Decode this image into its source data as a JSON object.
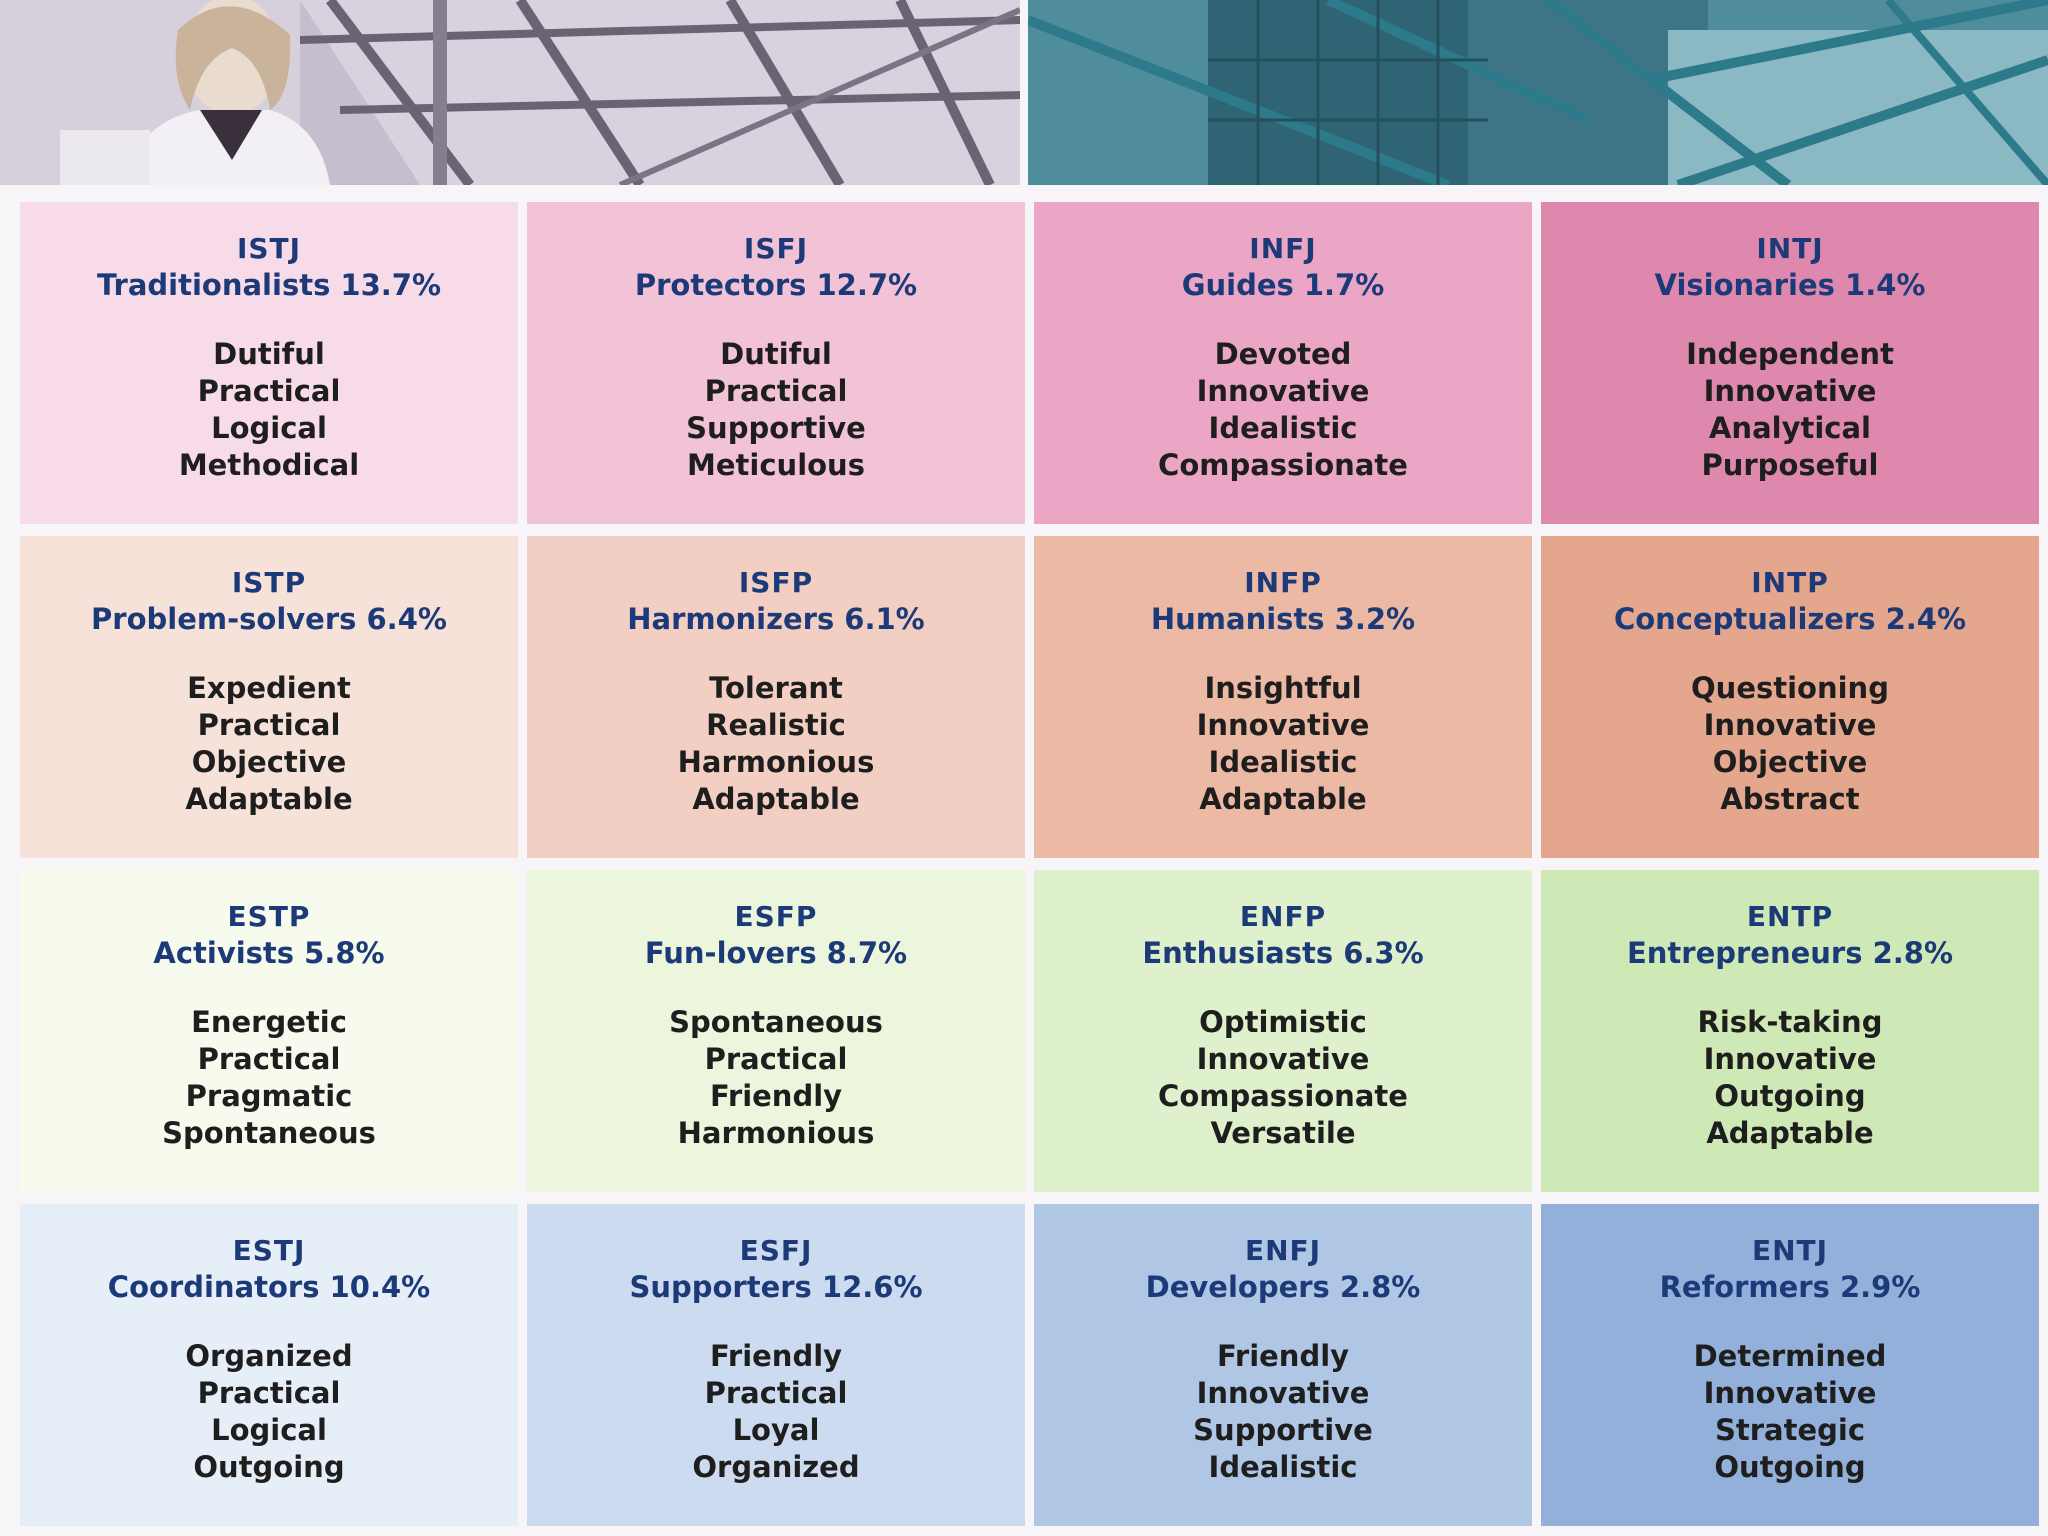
{
  "types": [
    {
      "code": "ISTJ",
      "name": "Traditionalists 13.7%",
      "traits": [
        "Dutiful",
        "Practical",
        "Logical",
        "Methodical"
      ],
      "color": "#f7dbe9"
    },
    {
      "code": "ISFJ",
      "name": "Protectors 12.7%",
      "traits": [
        "Dutiful",
        "Practical",
        "Supportive",
        "Meticulous"
      ],
      "color": "#f2c2d6"
    },
    {
      "code": "INFJ",
      "name": "Guides 1.7%",
      "traits": [
        "Devoted",
        "Innovative",
        "Idealistic",
        "Compassionate"
      ],
      "color": "#eaa6c4"
    },
    {
      "code": "INTJ",
      "name": "Visionaries 1.4%",
      "traits": [
        "Independent",
        "Innovative",
        "Analytical",
        "Purposeful"
      ],
      "color": "#df88ad"
    },
    {
      "code": "ISTP",
      "name": "Problem-solvers 6.4%",
      "traits": [
        "Expedient",
        "Practical",
        "Objective",
        "Adaptable"
      ],
      "color": "#f7e2da"
    },
    {
      "code": "ISFP",
      "name": "Harmonizers 6.1%",
      "traits": [
        "Tolerant",
        "Realistic",
        "Harmonious",
        "Adaptable"
      ],
      "color": "#f2cfc2"
    },
    {
      "code": "INFP",
      "name": "Humanists 3.2%",
      "traits": [
        "Insightful",
        "Innovative",
        "Idealistic",
        "Adaptable"
      ],
      "color": "#ebb9a4"
    },
    {
      "code": "INTP",
      "name": "Conceptualizers 2.4%",
      "traits": [
        "Questioning",
        "Innovative",
        "Objective",
        "Abstract"
      ],
      "color": "#e4a68d"
    },
    {
      "code": "ESTP",
      "name": "Activists 5.8%",
      "traits": [
        "Energetic",
        "Practical",
        "Pragmatic",
        "Spontaneous"
      ],
      "color": "#f6fbee"
    },
    {
      "code": "ESFP",
      "name": "Fun-lovers 8.7%",
      "traits": [
        "Spontaneous",
        "Practical",
        "Friendly",
        "Harmonious"
      ],
      "color": "#ebf6dc"
    },
    {
      "code": "ENFP",
      "name": "Enthusiasts 6.3%",
      "traits": [
        "Optimistic",
        "Innovative",
        "Compassionate",
        "Versatile"
      ],
      "color": "#def0cc"
    },
    {
      "code": "ENTP",
      "name": "Entrepreneurs 2.8%",
      "traits": [
        "Risk-taking",
        "Innovative",
        "Outgoing",
        "Adaptable"
      ],
      "color": "#cfe9b6"
    },
    {
      "code": "ESTJ",
      "name": "Coordinators 10.4%",
      "traits": [
        "Organized",
        "Practical",
        "Logical",
        "Outgoing"
      ],
      "color": "#e6eef8"
    },
    {
      "code": "ESFJ",
      "name": "Supporters 12.6%",
      "traits": [
        "Friendly",
        "Practical",
        "Loyal",
        "Organized"
      ],
      "color": "#ccdbef"
    },
    {
      "code": "ENFJ",
      "name": "Developers 2.8%",
      "traits": [
        "Friendly",
        "Innovative",
        "Supportive",
        "Idealistic"
      ],
      "color": "#afc6e5"
    },
    {
      "code": "ENTJ",
      "name": "Reformers 2.9%",
      "traits": [
        "Determined",
        "Innovative",
        "Strategic",
        "Outgoing"
      ],
      "color": "#92b0da"
    }
  ]
}
